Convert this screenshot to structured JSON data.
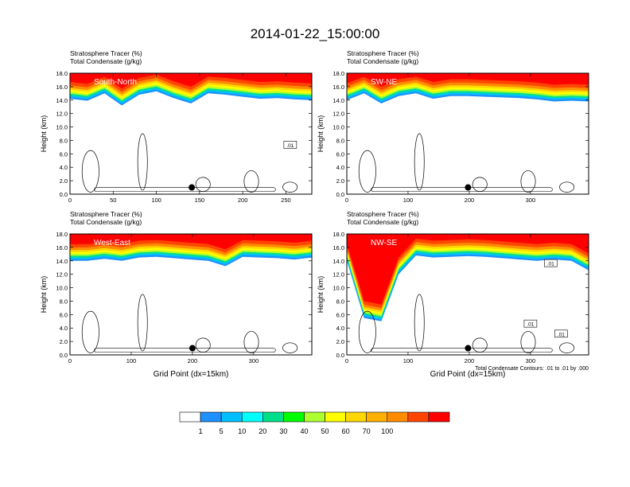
{
  "figure": {
    "title": "2014-01-22_15:00:00"
  },
  "chart_data": [
    {
      "type": "heatmap",
      "panel_label": "South-North",
      "header_lines": [
        "Stratosphere Tracer   (%)",
        "Total Condensate   (g/kg)"
      ],
      "ylabel": "Height (km)",
      "xlabel": "",
      "xlim": [
        0,
        280
      ],
      "ylim": [
        0,
        18
      ],
      "x_ticks": [
        0,
        50,
        100,
        150,
        200,
        250
      ],
      "y_ticks": [
        "0.0",
        "2.0",
        "4.0",
        "6.0",
        "8.0",
        "10.0",
        "12.0",
        "14.0",
        "16.0",
        "18.0"
      ],
      "tracer_layer_base_km": [
        14.2,
        13.9,
        15.0,
        13.2,
        14.8,
        15.3,
        14.3,
        13.5,
        15.0,
        14.8,
        14.5,
        14.2,
        14.3,
        14.1,
        14.0
      ],
      "contour_labels": [
        {
          "x": 255,
          "y": 7.3,
          "text": ".01"
        }
      ],
      "marker": {
        "x": 141,
        "y": 1.0
      }
    },
    {
      "type": "heatmap",
      "panel_label": "SW-NE",
      "header_lines": [
        "Stratosphere Tracer   (%)",
        "Total Condensate   (g/kg)"
      ],
      "ylabel": "Height (km)",
      "xlabel": "",
      "xlim": [
        0,
        395
      ],
      "ylim": [
        0,
        18
      ],
      "x_ticks": [
        0,
        100,
        200,
        300
      ],
      "y_ticks": [
        "0.0",
        "2.0",
        "4.0",
        "6.0",
        "8.0",
        "10.0",
        "12.0",
        "14.0",
        "16.0",
        "18.0"
      ],
      "tracer_layer_base_km": [
        14.0,
        15.0,
        13.5,
        14.6,
        15.0,
        14.2,
        14.6,
        14.6,
        14.5,
        14.4,
        14.3,
        14.1,
        13.8,
        13.9,
        13.8
      ],
      "contour_labels": [],
      "marker": {
        "x": 198,
        "y": 1.0
      }
    },
    {
      "type": "heatmap",
      "panel_label": "West-East",
      "header_lines": [
        "Stratosphere Tracer   (%)",
        "Total Condensate   (g/kg)"
      ],
      "ylabel": "Height (km)",
      "xlabel": "Grid Point (dx=15km)",
      "xlim": [
        0,
        395
      ],
      "ylim": [
        0,
        18
      ],
      "x_ticks": [
        0,
        100,
        200,
        300
      ],
      "y_ticks": [
        "0.0",
        "2.0",
        "4.0",
        "6.0",
        "8.0",
        "10.0",
        "12.0",
        "14.0",
        "16.0",
        "18.0"
      ],
      "tracer_layer_base_km": [
        14.0,
        14.0,
        14.3,
        14.0,
        14.5,
        14.6,
        14.4,
        14.2,
        14.0,
        13.2,
        14.6,
        14.5,
        14.4,
        14.2,
        14.5
      ],
      "contour_labels": [],
      "marker": {
        "x": 200,
        "y": 1.0
      }
    },
    {
      "type": "heatmap",
      "panel_label": "NW-SE",
      "header_lines": [
        "Stratosphere Tracer   (%)",
        "Total Condensate   (g/kg)"
      ],
      "ylabel": "Height (km)",
      "xlabel": "Grid Point (dx=15km)",
      "xlim": [
        0,
        395
      ],
      "ylim": [
        0,
        18
      ],
      "x_ticks": [
        0,
        100,
        200,
        300
      ],
      "y_ticks": [
        "0.0",
        "2.0",
        "4.0",
        "6.0",
        "8.0",
        "10.0",
        "12.0",
        "14.0",
        "16.0",
        "18.0"
      ],
      "tracer_layer_base_km": [
        14.0,
        5.5,
        5.0,
        12.0,
        14.8,
        14.5,
        14.6,
        14.7,
        14.6,
        14.4,
        14.2,
        14.0,
        14.2,
        14.0,
        12.6
      ],
      "contour_labels": [
        {
          "x": 300,
          "y": 4.6,
          "text": ".01"
        },
        {
          "x": 333,
          "y": 13.6,
          "text": ".01"
        },
        {
          "x": 350,
          "y": 3.1,
          "text": ".01"
        }
      ],
      "marker": {
        "x": 198,
        "y": 1.0
      },
      "footnote": "Total Condensate Contours: .01 to .01 by .000"
    }
  ],
  "colorbar": {
    "colors": [
      "#ffffff",
      "#1e90ff",
      "#00bfff",
      "#00ffff",
      "#00e08a",
      "#00ff00",
      "#adff2f",
      "#ffff00",
      "#ffd700",
      "#ffb000",
      "#ff8c00",
      "#ff4500",
      "#ff0000"
    ],
    "labels": [
      "1",
      "5",
      "10",
      "20",
      "30",
      "40",
      "50",
      "60",
      "70",
      "100"
    ]
  }
}
